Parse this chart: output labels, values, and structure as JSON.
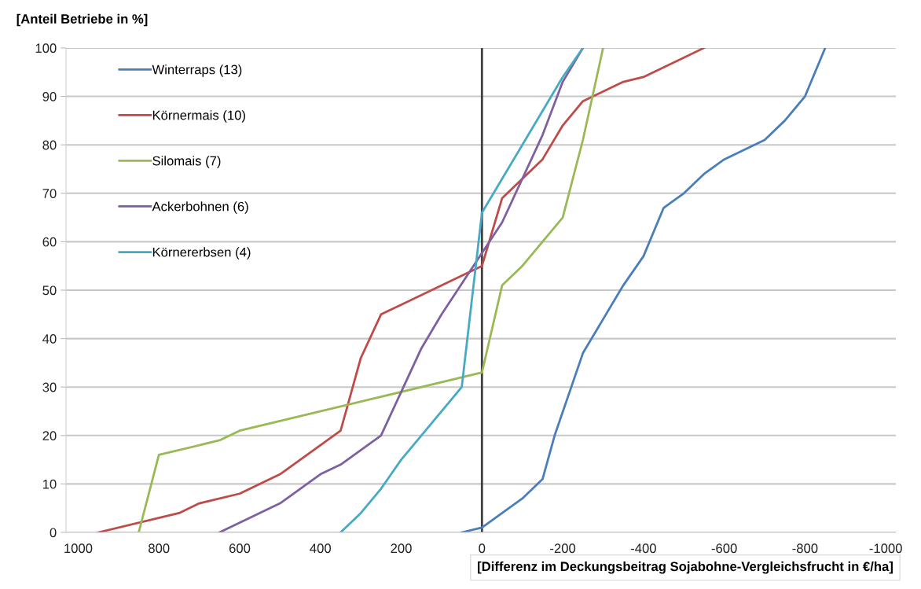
{
  "chart_data": {
    "type": "line",
    "ylabel": "[Anteil Betriebe in %]",
    "xlabel": "[Differenz im Deckungsbeitrag Sojabohne-Vergleichsfrucht in €/ha]",
    "xlim": [
      1030,
      -1025
    ],
    "xticks": [
      1000,
      800,
      600,
      400,
      200,
      0,
      -200,
      -400,
      -600,
      -800,
      -1000
    ],
    "ylim": [
      0,
      100
    ],
    "yticks": [
      0,
      10,
      20,
      30,
      40,
      50,
      60,
      70,
      80,
      90,
      100
    ],
    "grid": "y",
    "legend": "top left",
    "marker": "none",
    "line_style": "solid",
    "ref_lines": [
      {
        "axis": "x",
        "value": 0,
        "color": "#404040"
      }
    ],
    "series": [
      {
        "name": "Winterraps (13)",
        "color": "#4a7ebb",
        "x": [
          50,
          0,
          -100,
          -150,
          -180,
          -250,
          -350,
          -400,
          -450,
          -500,
          -550,
          -600,
          -700,
          -750,
          -800,
          -850
        ],
        "values": [
          0,
          1,
          7,
          11,
          20,
          37,
          51,
          57,
          67,
          70,
          74,
          77,
          81,
          85,
          90,
          100
        ]
      },
      {
        "name": "Körnermais (10)",
        "color": "#be4b48",
        "x": [
          950,
          750,
          700,
          600,
          500,
          350,
          300,
          250,
          0,
          -50,
          -150,
          -200,
          -250,
          -350,
          -400,
          -550
        ],
        "values": [
          0,
          4,
          6,
          8,
          12,
          21,
          36,
          45,
          55,
          69,
          77,
          84,
          89,
          93,
          94,
          100
        ]
      },
      {
        "name": "Silomais (7)",
        "color": "#98b954",
        "x": [
          850,
          800,
          650,
          600,
          0,
          -50,
          -100,
          -200,
          -250,
          -300
        ],
        "values": [
          0,
          16,
          19,
          21,
          33,
          51,
          55,
          65,
          81,
          100
        ]
      },
      {
        "name": "Ackerbohnen (6)",
        "color": "#7d60a0",
        "x": [
          650,
          500,
          400,
          350,
          250,
          150,
          100,
          -50,
          -150,
          -200,
          -250
        ],
        "values": [
          0,
          6,
          12,
          14,
          20,
          38,
          45,
          64,
          82,
          93,
          100
        ]
      },
      {
        "name": "Körnererbsen (4)",
        "color": "#46aac5",
        "x": [
          350,
          300,
          250,
          200,
          50,
          0,
          -200,
          -250
        ],
        "values": [
          0,
          4,
          9,
          15,
          30,
          66,
          94,
          100
        ]
      }
    ]
  }
}
